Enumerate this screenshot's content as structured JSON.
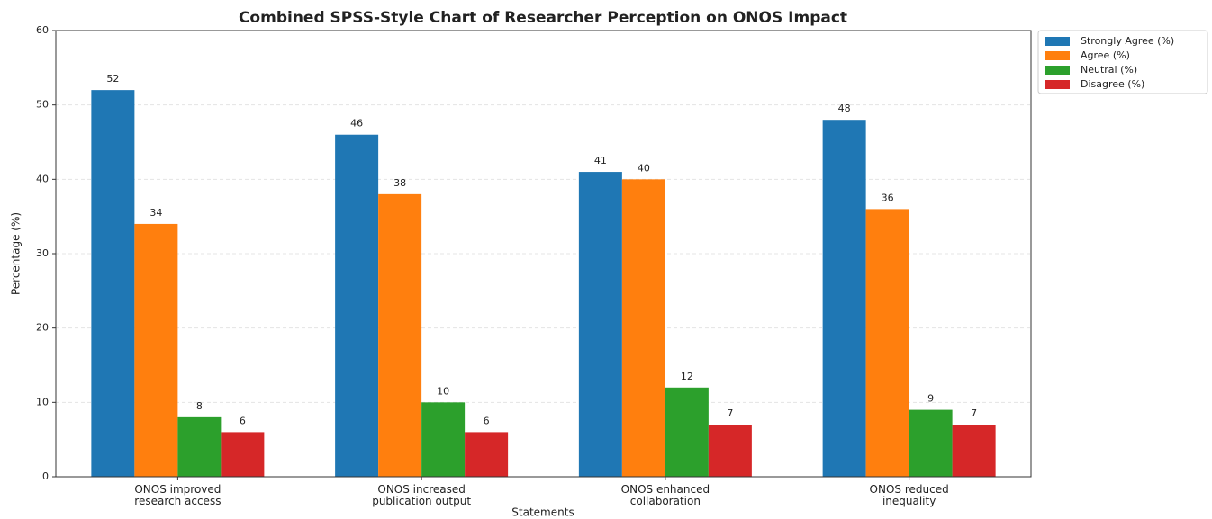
{
  "chart_data": {
    "type": "bar",
    "title": "Combined SPSS-Style Chart of Researcher Perception on ONOS Impact",
    "xlabel": "Statements",
    "ylabel": "Percentage (%)",
    "categories": [
      "ONOS improved\nresearch access",
      "ONOS increased\npublication output",
      "ONOS enhanced\ncollaboration",
      "ONOS reduced\ninequality"
    ],
    "series": [
      {
        "name": "Strongly Agree (%)",
        "color": "#1f77b4",
        "values": [
          52,
          46,
          41,
          48
        ]
      },
      {
        "name": "Agree (%)",
        "color": "#ff7f0e",
        "values": [
          34,
          38,
          40,
          36
        ]
      },
      {
        "name": "Neutral (%)",
        "color": "#2ca02c",
        "values": [
          8,
          10,
          12,
          9
        ]
      },
      {
        "name": "Disagree (%)",
        "color": "#d62728",
        "values": [
          6,
          6,
          7,
          7
        ]
      }
    ],
    "ylim": [
      0,
      60
    ],
    "yticks": [
      0,
      10,
      20,
      30,
      40,
      50,
      60
    ],
    "grid": true,
    "legend": "outside upper right"
  }
}
